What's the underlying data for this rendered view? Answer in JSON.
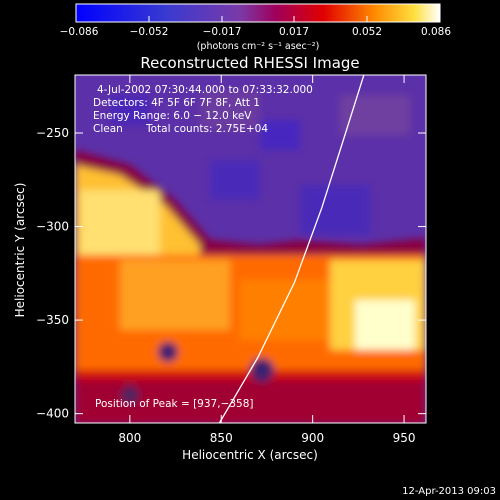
{
  "colorbar": {
    "ticks": [
      "−0.086",
      "−0.052",
      "−0.017",
      "0.017",
      "0.052",
      "0.086"
    ],
    "units": "(photons cm⁻² s⁻¹ asec⁻²)",
    "range": [
      -0.086,
      0.086
    ]
  },
  "title": "Reconstructed RHESSI Image",
  "info": {
    "time": "4-Jul-2002 07:30:44.000 to 07:33:32.000",
    "detectors": "Detectors: 4F 5F 6F 7F 8F, Att 1",
    "energy": "Energy Range: 6.0 − 12.0 keV",
    "clean": "Clean",
    "counts": "Total counts: 2.75E+04",
    "peak": "Position of Peak = [937,−358]"
  },
  "footer_date": "12-Apr-2013 09:03",
  "chart_data": {
    "type": "heatmap",
    "title": "Reconstructed RHESSI Image",
    "xlabel": "Heliocentric X (arcsec)",
    "ylabel": "Heliocentric Y (arcsec)",
    "xlim": [
      770,
      962
    ],
    "ylim": [
      -405,
      -219
    ],
    "xticks": [
      800,
      850,
      900,
      950
    ],
    "xtick_labels": [
      "800",
      "850",
      "900",
      "950"
    ],
    "yticks": [
      -250,
      -300,
      -350,
      -400
    ],
    "ytick_labels": [
      "−250",
      "−300",
      "−350",
      "−400"
    ],
    "peak": [
      937,
      -358
    ],
    "limb_curve": [
      [
        849,
        -405
      ],
      [
        870,
        -370
      ],
      [
        890,
        -330
      ],
      [
        905,
        -290
      ],
      [
        918,
        -250
      ],
      [
        928,
        -219
      ]
    ],
    "colors": {
      "low": "#0000ff",
      "mid_low": "#5a2f9e",
      "mid": "#a0005a",
      "high": "#ff6a00",
      "max": "#ffffdd"
    }
  }
}
